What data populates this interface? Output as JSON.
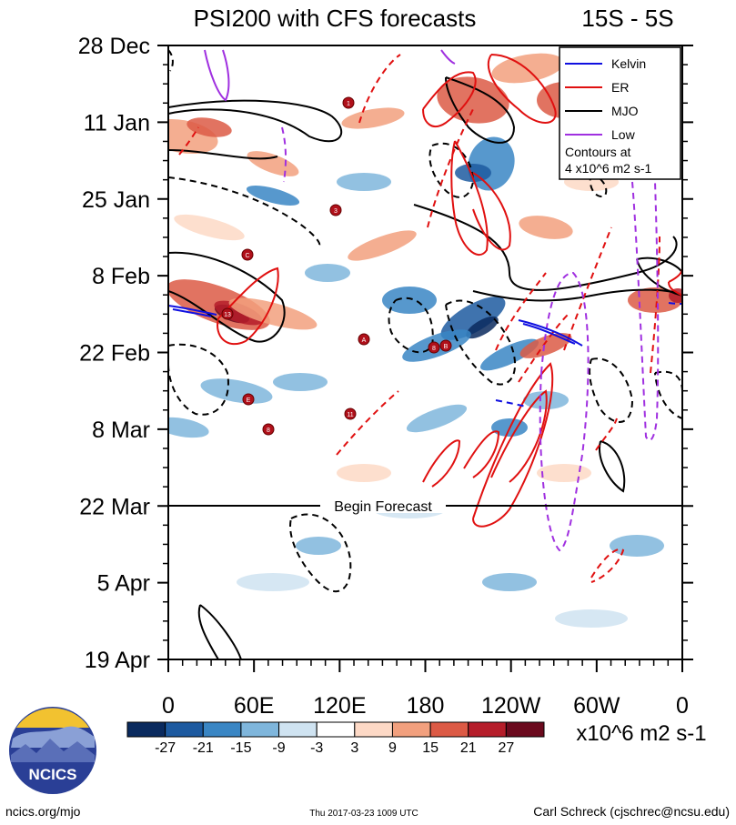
{
  "chart_data": {
    "type": "heatmap",
    "title": "PSI200 with CFS forecasts",
    "region_label": "15S - 5S",
    "y_ticks": [
      "28 Dec",
      "11 Jan",
      "25 Jan",
      "8 Feb",
      "22 Feb",
      "8 Mar",
      "22 Mar",
      "5 Apr",
      "19 Apr"
    ],
    "y_axis_days_from_start": [
      0,
      14,
      28,
      42,
      56,
      70,
      84,
      98,
      112
    ],
    "x_ticks": [
      "0",
      "60E",
      "120E",
      "180",
      "120W",
      "60W",
      "0"
    ],
    "x_axis_degrees_east": [
      0,
      60,
      120,
      180,
      240,
      300,
      360
    ],
    "forecast_start_label": "Begin Forecast",
    "forecast_start_day": 84,
    "legend": {
      "entries": [
        {
          "name": "Kelvin",
          "color": "#1010e0"
        },
        {
          "name": "ER",
          "color": "#e01010"
        },
        {
          "name": "MJO",
          "color": "#000000"
        },
        {
          "name": "Low",
          "color": "#a030e0"
        }
      ],
      "note_line1": "Contours at",
      "note_line2": "4 x10^6 m2 s-1"
    },
    "colorbar": {
      "labels": [
        "-27",
        "-21",
        "-15",
        "-9",
        "-3",
        "3",
        "9",
        "15",
        "21",
        "27"
      ],
      "bins": [
        -30,
        -27,
        -21,
        -15,
        -9,
        -3,
        3,
        9,
        15,
        21,
        27,
        30
      ],
      "colors": [
        "#0a2a5e",
        "#1d5aa0",
        "#3a86c4",
        "#7fb6dc",
        "#cfe3f1",
        "#ffffff",
        "#fdd9c6",
        "#f2a07e",
        "#dc5a45",
        "#b51d2a",
        "#6b0a1e"
      ],
      "units": "x10^6 m2 s-1"
    },
    "storm_markers": [
      "1",
      "3",
      "C",
      "A",
      "8",
      "B",
      "E",
      "11",
      "8",
      "13"
    ]
  },
  "logo": {
    "text": "NCICS"
  },
  "footer": {
    "left": "ncics.org/mjo",
    "center": "Thu 2017-03-23 1009 UTC",
    "right": "Carl Schreck (cjschrec@ncsu.edu)"
  }
}
